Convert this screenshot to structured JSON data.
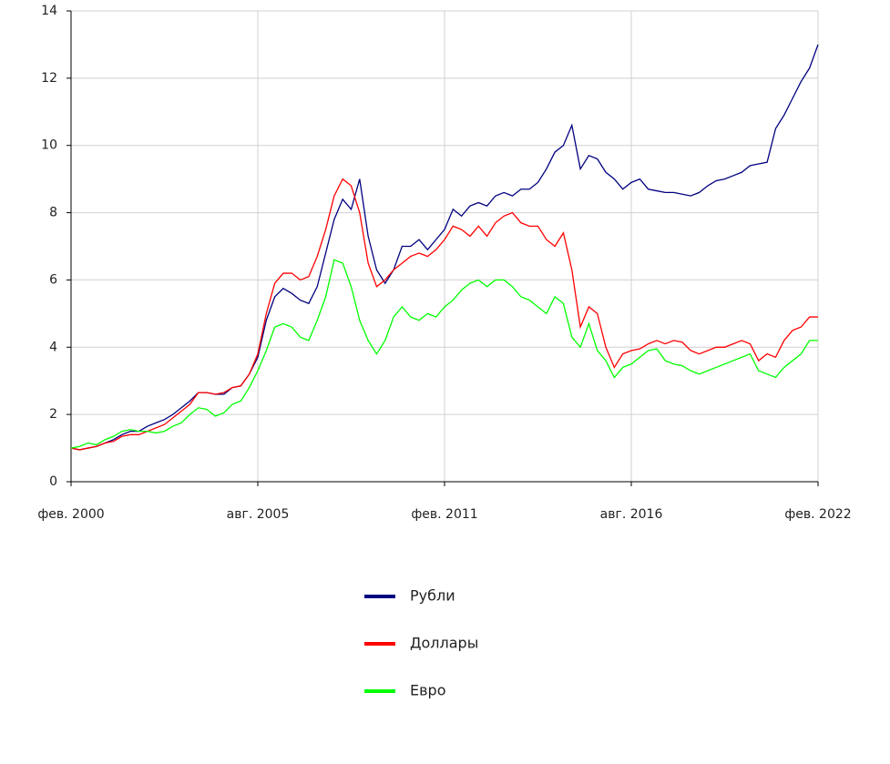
{
  "chart_data": {
    "type": "line",
    "x": [
      "2000-02",
      "2000-05",
      "2000-08",
      "2000-11",
      "2001-02",
      "2001-05",
      "2001-08",
      "2001-11",
      "2002-02",
      "2002-05",
      "2002-08",
      "2002-11",
      "2003-02",
      "2003-05",
      "2003-08",
      "2003-11",
      "2004-02",
      "2004-05",
      "2004-08",
      "2004-11",
      "2005-02",
      "2005-05",
      "2005-08",
      "2005-11",
      "2006-02",
      "2006-05",
      "2006-08",
      "2006-11",
      "2007-02",
      "2007-05",
      "2007-08",
      "2007-11",
      "2008-02",
      "2008-05",
      "2008-08",
      "2008-11",
      "2009-02",
      "2009-05",
      "2009-08",
      "2009-11",
      "2010-02",
      "2010-05",
      "2010-08",
      "2010-11",
      "2011-02",
      "2011-05",
      "2011-08",
      "2011-11",
      "2012-02",
      "2012-05",
      "2012-08",
      "2012-11",
      "2013-02",
      "2013-05",
      "2013-08",
      "2013-11",
      "2014-02",
      "2014-05",
      "2014-08",
      "2014-11",
      "2015-02",
      "2015-05",
      "2015-08",
      "2015-11",
      "2016-02",
      "2016-05",
      "2016-08",
      "2016-11",
      "2017-02",
      "2017-05",
      "2017-08",
      "2017-11",
      "2018-02",
      "2018-05",
      "2018-08",
      "2018-11",
      "2019-02",
      "2019-05",
      "2019-08",
      "2019-11",
      "2020-02",
      "2020-05",
      "2020-08",
      "2020-11",
      "2021-02",
      "2021-05",
      "2021-08",
      "2021-11",
      "2022-02"
    ],
    "series": [
      {
        "name": "Рубли",
        "color": "#000080",
        "values": [
          1.0,
          0.95,
          1.0,
          1.05,
          1.15,
          1.25,
          1.4,
          1.5,
          1.5,
          1.65,
          1.75,
          1.85,
          2.0,
          2.2,
          2.4,
          2.65,
          2.65,
          2.6,
          2.6,
          2.8,
          2.85,
          3.2,
          3.7,
          4.8,
          5.5,
          5.75,
          5.6,
          5.4,
          5.3,
          5.8,
          6.8,
          7.8,
          8.4,
          8.1,
          9.0,
          7.3,
          6.3,
          5.9,
          6.3,
          7.0,
          7.0,
          7.2,
          6.9,
          7.2,
          7.5,
          8.1,
          7.9,
          8.2,
          8.3,
          8.2,
          8.5,
          8.6,
          8.5,
          8.7,
          8.7,
          8.9,
          9.3,
          9.8,
          10.0,
          10.6,
          9.3,
          9.7,
          9.6,
          9.2,
          9.0,
          8.7,
          8.9,
          9.0,
          8.7,
          8.65,
          8.6,
          8.6,
          8.55,
          8.5,
          8.6,
          8.8,
          8.95,
          9.0,
          9.1,
          9.2,
          9.4,
          9.45,
          9.5,
          10.5,
          10.9,
          11.4,
          11.9,
          12.3,
          13.0
        ]
      },
      {
        "name": "Доллары",
        "color": "#ff0000",
        "values": [
          1.0,
          0.95,
          1.0,
          1.05,
          1.15,
          1.2,
          1.35,
          1.4,
          1.4,
          1.5,
          1.6,
          1.7,
          1.9,
          2.1,
          2.3,
          2.65,
          2.65,
          2.6,
          2.65,
          2.8,
          2.85,
          3.2,
          3.8,
          5.0,
          5.9,
          6.2,
          6.2,
          6.0,
          6.1,
          6.7,
          7.5,
          8.5,
          9.0,
          8.8,
          8.0,
          6.5,
          5.8,
          6.0,
          6.3,
          6.5,
          6.7,
          6.8,
          6.7,
          6.9,
          7.2,
          7.6,
          7.5,
          7.3,
          7.6,
          7.3,
          7.7,
          7.9,
          8.0,
          7.7,
          7.6,
          7.6,
          7.2,
          7.0,
          7.4,
          6.3,
          4.6,
          5.2,
          5.0,
          4.0,
          3.4,
          3.8,
          3.9,
          3.95,
          4.1,
          4.2,
          4.1,
          4.2,
          4.15,
          3.9,
          3.8,
          3.9,
          4.0,
          4.0,
          4.1,
          4.2,
          4.1,
          3.6,
          3.8,
          3.7,
          4.2,
          4.5,
          4.6,
          4.9,
          4.9
        ]
      },
      {
        "name": "Евро",
        "color": "#00ff00",
        "values": [
          1.0,
          1.05,
          1.15,
          1.1,
          1.25,
          1.35,
          1.5,
          1.55,
          1.5,
          1.5,
          1.45,
          1.5,
          1.65,
          1.75,
          2.0,
          2.2,
          2.15,
          1.95,
          2.05,
          2.3,
          2.4,
          2.8,
          3.3,
          3.9,
          4.6,
          4.7,
          4.6,
          4.3,
          4.2,
          4.8,
          5.5,
          6.6,
          6.5,
          5.8,
          4.8,
          4.2,
          3.8,
          4.2,
          4.9,
          5.2,
          4.9,
          4.8,
          5.0,
          4.9,
          5.2,
          5.4,
          5.7,
          5.9,
          6.0,
          5.8,
          6.0,
          6.0,
          5.8,
          5.5,
          5.4,
          5.2,
          5.0,
          5.5,
          5.3,
          4.3,
          4.0,
          4.7,
          3.9,
          3.6,
          3.1,
          3.4,
          3.5,
          3.7,
          3.9,
          3.95,
          3.6,
          3.5,
          3.45,
          3.3,
          3.2,
          3.3,
          3.4,
          3.5,
          3.6,
          3.7,
          3.8,
          3.3,
          3.2,
          3.1,
          3.4,
          3.6,
          3.8,
          4.2,
          4.2
        ]
      }
    ],
    "xlim": [
      "2000-02",
      "2022-02"
    ],
    "xticks": [
      {
        "value": "2000-02",
        "label": "фев. 2000"
      },
      {
        "value": "2005-08",
        "label": "авг. 2005"
      },
      {
        "value": "2011-02",
        "label": "фев. 2011"
      },
      {
        "value": "2016-08",
        "label": "авг. 2016"
      },
      {
        "value": "2022-02",
        "label": "фев. 2022"
      }
    ],
    "ylim": [
      0,
      14
    ],
    "yticks": [
      0,
      2,
      4,
      6,
      8,
      10,
      12,
      14
    ],
    "grid": true
  }
}
